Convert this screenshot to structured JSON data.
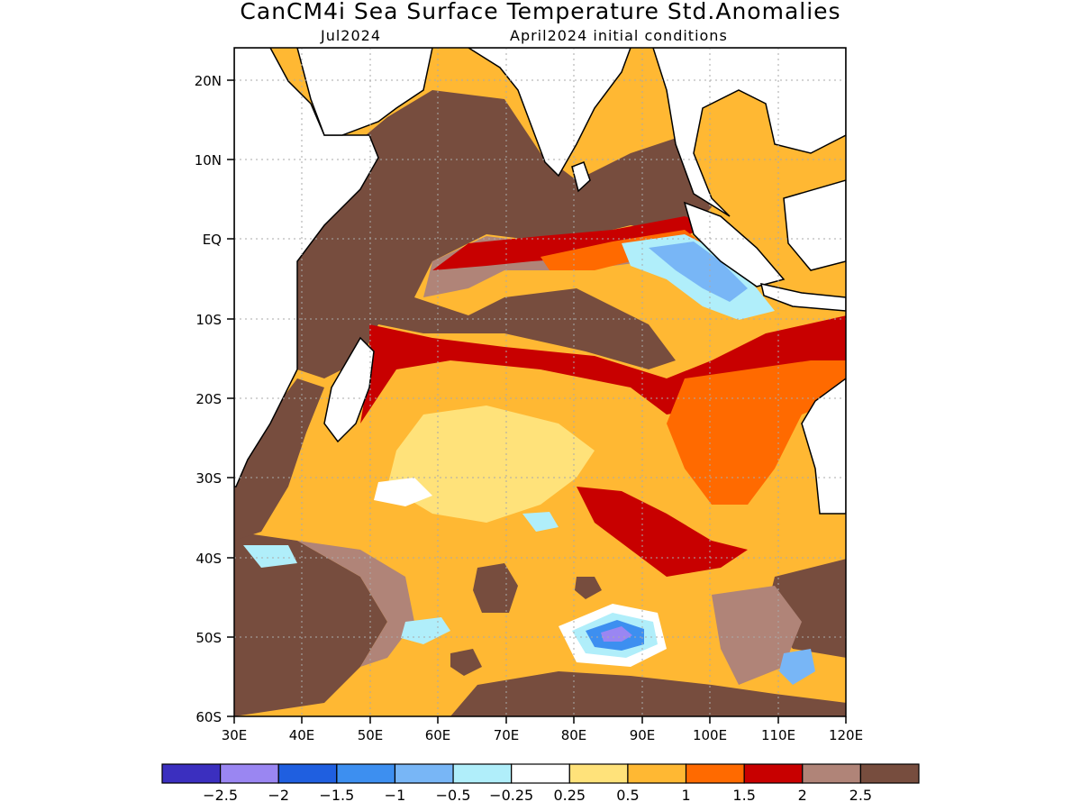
{
  "title": "CanCM4i Sea Surface Temperature Std.Anomalies",
  "subtitle_left": "Jul2024",
  "subtitle_right": "April2024 initial conditions",
  "map": {
    "lon_range": [
      "30E",
      "120E"
    ],
    "lat_range": [
      "60S",
      "24N"
    ],
    "grid": true,
    "land_color": "#ffffff",
    "lat_labels": [
      "20N",
      "10N",
      "EQ",
      "10S",
      "20S",
      "30S",
      "40S",
      "50S",
      "60S"
    ],
    "lon_labels": [
      "30E",
      "40E",
      "50E",
      "60E",
      "70E",
      "80E",
      "90E",
      "100E",
      "110E",
      "120E"
    ]
  },
  "colorbar": {
    "colors": [
      "#3b2fbf",
      "#9a86f2",
      "#1f5fe0",
      "#3d8ff0",
      "#78b6f6",
      "#b0eefa",
      "#ffffff",
      "#ffe27a",
      "#ffb833",
      "#ff6a00",
      "#c80000",
      "#b08478",
      "#774d3e"
    ],
    "labels": [
      "-2.5",
      "-2",
      "-1.5",
      "-1",
      "-0.5",
      "-0.25",
      "0.25",
      "0.5",
      "1",
      "1.5",
      "2",
      "2.5"
    ]
  }
}
